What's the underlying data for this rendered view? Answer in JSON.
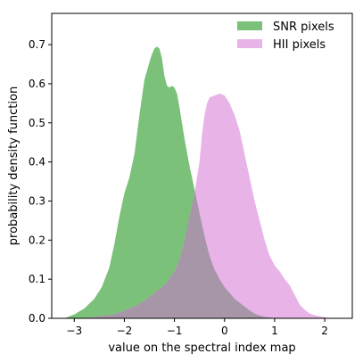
{
  "chart_data": {
    "type": "area",
    "xlabel": "value on the spectral index map",
    "ylabel": "probability density function",
    "xlim": [
      -3.45,
      2.55
    ],
    "ylim": [
      0,
      0.78
    ],
    "grid": false,
    "legend_position": "top-right",
    "x_ticks": [
      -3,
      -2,
      -1,
      0,
      1,
      2
    ],
    "x_tick_labels": [
      "−3",
      "−2",
      "−1",
      "0",
      "1",
      "2"
    ],
    "y_ticks": [
      0.0,
      0.1,
      0.2,
      0.3,
      0.4,
      0.5,
      0.6,
      0.7
    ],
    "y_tick_labels": [
      "0.0",
      "0.1",
      "0.2",
      "0.3",
      "0.4",
      "0.5",
      "0.6",
      "0.7"
    ],
    "series": [
      {
        "name": "SNR pixels",
        "color": "#7cc17a",
        "x": [
          -3.2,
          -3.0,
          -2.8,
          -2.6,
          -2.45,
          -2.3,
          -2.2,
          -2.1,
          -2.0,
          -1.9,
          -1.8,
          -1.7,
          -1.6,
          -1.5,
          -1.45,
          -1.4,
          -1.35,
          -1.3,
          -1.25,
          -1.2,
          -1.15,
          -1.1,
          -1.05,
          -1.0,
          -0.95,
          -0.9,
          -0.85,
          -0.8,
          -0.7,
          -0.6,
          -0.5,
          -0.4,
          -0.3,
          -0.2,
          -0.1,
          0.0,
          0.1,
          0.2,
          0.3,
          0.4,
          0.5,
          0.6,
          0.7,
          0.8,
          0.9,
          1.0
        ],
        "values": [
          0.0,
          0.01,
          0.025,
          0.05,
          0.08,
          0.13,
          0.19,
          0.26,
          0.32,
          0.36,
          0.42,
          0.52,
          0.61,
          0.655,
          0.675,
          0.69,
          0.695,
          0.69,
          0.665,
          0.62,
          0.595,
          0.59,
          0.595,
          0.59,
          0.575,
          0.54,
          0.5,
          0.46,
          0.39,
          0.33,
          0.27,
          0.21,
          0.16,
          0.125,
          0.1,
          0.08,
          0.065,
          0.05,
          0.04,
          0.03,
          0.02,
          0.012,
          0.007,
          0.004,
          0.002,
          0.0
        ]
      },
      {
        "name": "HII pixels",
        "color": "#e8b4e8",
        "x": [
          -2.8,
          -2.5,
          -2.2,
          -2.0,
          -1.8,
          -1.6,
          -1.4,
          -1.2,
          -1.0,
          -0.9,
          -0.8,
          -0.7,
          -0.6,
          -0.5,
          -0.45,
          -0.4,
          -0.35,
          -0.3,
          -0.2,
          -0.1,
          0.0,
          0.1,
          0.2,
          0.3,
          0.4,
          0.5,
          0.6,
          0.7,
          0.8,
          0.9,
          1.0,
          1.1,
          1.2,
          1.3,
          1.4,
          1.5,
          1.6,
          1.7,
          1.8,
          1.9,
          2.0,
          2.1
        ],
        "values": [
          0.0,
          0.005,
          0.01,
          0.02,
          0.03,
          0.045,
          0.065,
          0.085,
          0.12,
          0.15,
          0.2,
          0.26,
          0.32,
          0.4,
          0.47,
          0.52,
          0.55,
          0.565,
          0.57,
          0.575,
          0.57,
          0.55,
          0.52,
          0.48,
          0.42,
          0.36,
          0.3,
          0.25,
          0.2,
          0.16,
          0.135,
          0.12,
          0.1,
          0.085,
          0.06,
          0.035,
          0.022,
          0.012,
          0.008,
          0.005,
          0.003,
          0.0
        ]
      }
    ],
    "overlap_color": "#a796a8"
  }
}
